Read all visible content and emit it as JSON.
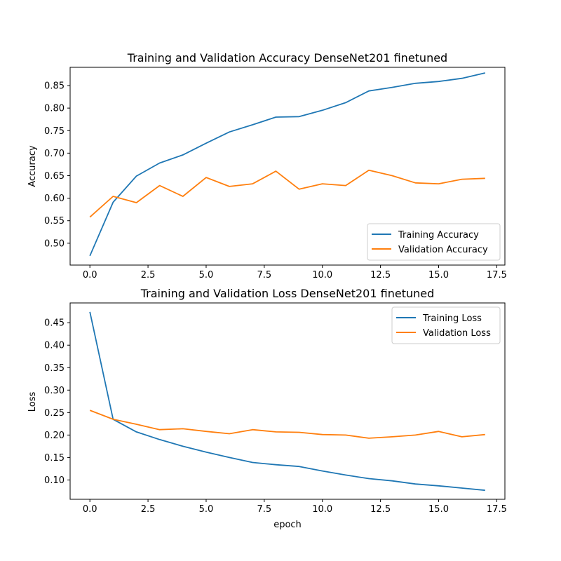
{
  "chart_data": [
    {
      "type": "line",
      "title": "Training and Validation Accuracy DenseNet201 finetuned",
      "xlabel": "",
      "ylabel": "Accuracy",
      "xlim": [
        -0.85,
        17.85
      ],
      "ylim": [
        0.4515,
        0.8905
      ],
      "xticks": [
        0.0,
        2.5,
        5.0,
        7.5,
        10.0,
        12.5,
        15.0,
        17.5
      ],
      "xtick_labels": [
        "0.0",
        "2.5",
        "5.0",
        "7.5",
        "10.0",
        "12.5",
        "15.0",
        "17.5"
      ],
      "yticks": [
        0.5,
        0.55,
        0.6,
        0.65,
        0.7,
        0.75,
        0.8,
        0.85
      ],
      "ytick_labels": [
        "0.50",
        "0.55",
        "0.60",
        "0.65",
        "0.70",
        "0.75",
        "0.80",
        "0.85"
      ],
      "legend_position": "lower-right",
      "grid": false,
      "x": [
        0,
        1,
        2,
        3,
        4,
        5,
        6,
        7,
        8,
        9,
        10,
        11,
        12,
        13,
        14,
        15,
        16,
        17
      ],
      "series": [
        {
          "name": "Training Accuracy",
          "color": "#1f77b4",
          "values": [
            0.472,
            0.591,
            0.649,
            0.678,
            0.696,
            0.722,
            0.747,
            0.763,
            0.78,
            0.781,
            0.795,
            0.812,
            0.838,
            0.846,
            0.855,
            0.859,
            0.866,
            0.878
          ]
        },
        {
          "name": "Validation Accuracy",
          "color": "#ff7f0e",
          "values": [
            0.558,
            0.604,
            0.59,
            0.628,
            0.604,
            0.646,
            0.626,
            0.632,
            0.66,
            0.62,
            0.632,
            0.628,
            0.662,
            0.65,
            0.634,
            0.632,
            0.642,
            0.644
          ]
        }
      ]
    },
    {
      "type": "line",
      "title": "Training and Validation Loss DenseNet201 finetuned",
      "xlabel": "epoch",
      "ylabel": "Loss",
      "xlim": [
        -0.85,
        17.85
      ],
      "ylim": [
        0.057,
        0.494
      ],
      "xticks": [
        0.0,
        2.5,
        5.0,
        7.5,
        10.0,
        12.5,
        15.0,
        17.5
      ],
      "xtick_labels": [
        "0.0",
        "2.5",
        "5.0",
        "7.5",
        "10.0",
        "12.5",
        "15.0",
        "17.5"
      ],
      "yticks": [
        0.1,
        0.15,
        0.2,
        0.25,
        0.3,
        0.35,
        0.4,
        0.45
      ],
      "ytick_labels": [
        "0.10",
        "0.15",
        "0.20",
        "0.25",
        "0.30",
        "0.35",
        "0.40",
        "0.45"
      ],
      "legend_position": "upper-right",
      "grid": false,
      "x": [
        0,
        1,
        2,
        3,
        4,
        5,
        6,
        7,
        8,
        9,
        10,
        11,
        12,
        13,
        14,
        15,
        16,
        17
      ],
      "series": [
        {
          "name": "Training Loss",
          "color": "#1f77b4",
          "values": [
            0.474,
            0.235,
            0.207,
            0.19,
            0.175,
            0.162,
            0.15,
            0.139,
            0.134,
            0.13,
            0.12,
            0.111,
            0.103,
            0.098,
            0.091,
            0.087,
            0.082,
            0.077
          ]
        },
        {
          "name": "Validation Loss",
          "color": "#ff7f0e",
          "values": [
            0.255,
            0.235,
            0.224,
            0.212,
            0.214,
            0.208,
            0.203,
            0.212,
            0.207,
            0.206,
            0.201,
            0.2,
            0.193,
            0.196,
            0.2,
            0.208,
            0.196,
            0.201
          ]
        }
      ]
    }
  ]
}
